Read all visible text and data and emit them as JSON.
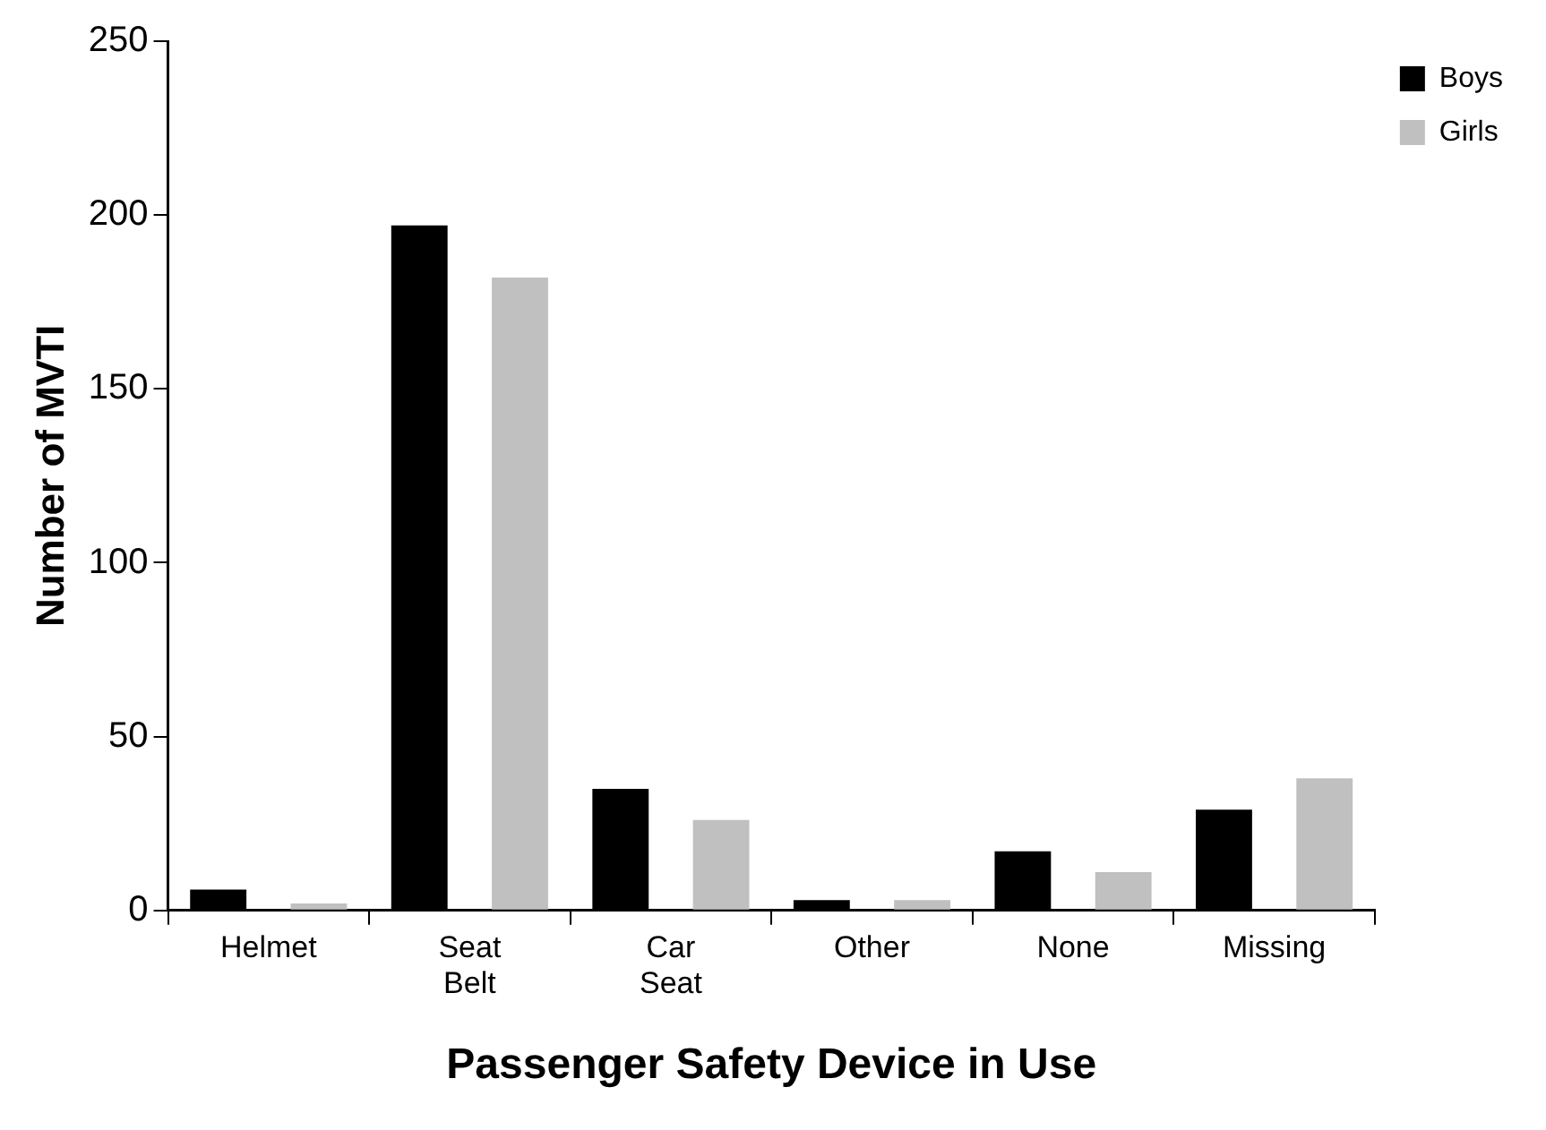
{
  "chart_data": {
    "type": "bar",
    "xlabel": "Passenger Safety Device in Use",
    "ylabel": "Number of MVTI",
    "categories": [
      "Helmet",
      "Seat Belt",
      "Car Seat",
      "Other",
      "None",
      "Missing"
    ],
    "series": [
      {
        "name": "Boys",
        "color": "#000000",
        "values": [
          6,
          197,
          35,
          3,
          17,
          29
        ]
      },
      {
        "name": "Girls",
        "color": "#c0c0c0",
        "values": [
          2,
          182,
          26,
          3,
          11,
          38
        ]
      }
    ],
    "ylim": [
      0,
      250
    ],
    "yticks": [
      0,
      50,
      100,
      150,
      200,
      250
    ],
    "grid": false,
    "legend": "top right"
  }
}
